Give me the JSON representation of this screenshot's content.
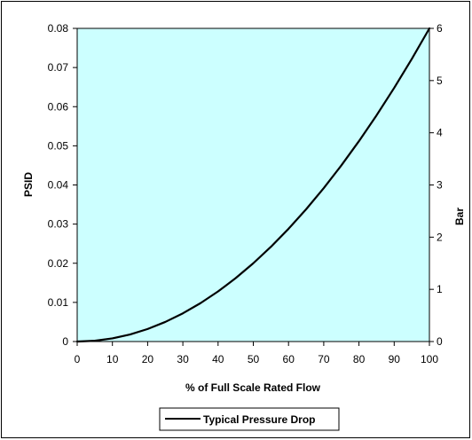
{
  "chart_data": {
    "type": "line",
    "title": "",
    "xlabel": "% of Full Scale Rated Flow",
    "ylabel": "PSID",
    "y2label": "Bar",
    "xlim": [
      0,
      100
    ],
    "ylim": [
      0,
      0.08
    ],
    "y2lim": [
      0,
      6
    ],
    "x_ticks": [
      0,
      10,
      20,
      30,
      40,
      50,
      60,
      70,
      80,
      90,
      100
    ],
    "y_ticks": [
      "0",
      "0.01",
      "0.02",
      "0.03",
      "0.04",
      "0.05",
      "0.06",
      "0.07",
      "0.08"
    ],
    "y2_ticks": [
      0,
      1,
      2,
      3,
      4,
      5,
      6
    ],
    "grid": false,
    "legend_position": "bottom",
    "plot_background": "#ccffff",
    "series": [
      {
        "name": "Typical Pressure Drop",
        "color": "#000000",
        "x": [
          0,
          5,
          10,
          15,
          20,
          25,
          30,
          35,
          40,
          45,
          50,
          55,
          60,
          65,
          70,
          75,
          80,
          85,
          90,
          95,
          100
        ],
        "y": [
          0,
          0.0002,
          0.0008,
          0.0018,
          0.0032,
          0.005,
          0.0072,
          0.0098,
          0.0128,
          0.0162,
          0.02,
          0.0242,
          0.0288,
          0.0338,
          0.0392,
          0.045,
          0.0512,
          0.0578,
          0.0648,
          0.0722,
          0.08
        ]
      }
    ]
  }
}
